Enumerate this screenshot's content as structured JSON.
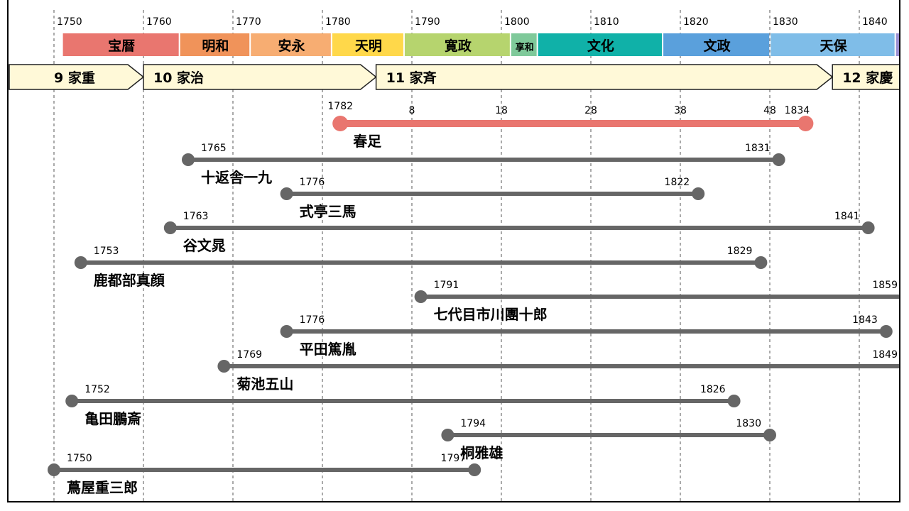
{
  "timeline": {
    "year_ticks": [
      "1750",
      "1760",
      "1770",
      "1780",
      "1790",
      "1800",
      "1810",
      "1820",
      "1830",
      "1840"
    ],
    "eras": [
      {
        "name": "宝暦",
        "start": 1751.0,
        "end": 1764.1,
        "color": "#e9766f"
      },
      {
        "name": "明和",
        "start": 1764.1,
        "end": 1772.0,
        "color": "#f0935a"
      },
      {
        "name": "安永",
        "start": 1772.0,
        "end": 1781.1,
        "color": "#f7ad72"
      },
      {
        "name": "天明",
        "start": 1781.1,
        "end": 1789.2,
        "color": "#ffd84a"
      },
      {
        "name": "寛政",
        "start": 1789.2,
        "end": 1801.1,
        "color": "#b6d46e"
      },
      {
        "name": "享和",
        "start": 1801.1,
        "end": 1804.1,
        "color": "#7fc99a"
      },
      {
        "name": "文化",
        "start": 1804.1,
        "end": 1818.1,
        "color": "#10b1a8"
      },
      {
        "name": "文政",
        "start": 1818.1,
        "end": 1830.1,
        "color": "#5aa0dc"
      },
      {
        "name": "天保",
        "start": 1830.1,
        "end": 1844.1,
        "color": "#7fbde8"
      },
      {
        "name": "",
        "start": 1844.1,
        "end": 1848.0,
        "color": "#9a8fd0"
      }
    ],
    "shoguns": [
      {
        "label": "9 家重",
        "start": 1745.0,
        "end": 1760.0
      },
      {
        "label": "10 家治",
        "start": 1760.0,
        "end": 1786.0
      },
      {
        "label": "11 家斉",
        "start": 1786.0,
        "end": 1837.0
      },
      {
        "label": "12 家慶",
        "start": 1837.0,
        "end": 1853.0
      }
    ]
  },
  "chart_data": {
    "type": "timeline",
    "people": [
      {
        "name": "春足",
        "start": 1782,
        "end": 1834,
        "color": "#e9766f",
        "start_label": "1782",
        "end_label": "1834",
        "age_marks": [
          {
            "year": 1790,
            "label": "8"
          },
          {
            "year": 1800,
            "label": "18"
          },
          {
            "year": 1810,
            "label": "28"
          },
          {
            "year": 1820,
            "label": "38"
          },
          {
            "year": 1830,
            "label": "48"
          }
        ]
      },
      {
        "name": "十返舎一九",
        "start": 1765,
        "end": 1831,
        "color": "#666666",
        "start_label": "1765",
        "end_label": "1831"
      },
      {
        "name": "式亭三馬",
        "start": 1776,
        "end": 1822,
        "color": "#666666",
        "start_label": "1776",
        "end_label": "1822"
      },
      {
        "name": "谷文晁",
        "start": 1763,
        "end": 1841,
        "color": "#666666",
        "start_label": "1763",
        "end_label": "1841"
      },
      {
        "name": "鹿都部真顔",
        "start": 1753,
        "end": 1829,
        "color": "#666666",
        "start_label": "1753",
        "end_label": "1829"
      },
      {
        "name": "七代目市川團十郎",
        "start": 1791,
        "end": 1859,
        "color": "#666666",
        "start_label": "1791",
        "end_label": "1859"
      },
      {
        "name": "平田篤胤",
        "start": 1776,
        "end": 1843,
        "color": "#666666",
        "start_label": "1776",
        "end_label": "1843"
      },
      {
        "name": "菊池五山",
        "start": 1769,
        "end": 1849,
        "color": "#666666",
        "start_label": "1769",
        "end_label": "1849"
      },
      {
        "name": "亀田鵬斎",
        "start": 1752,
        "end": 1826,
        "color": "#666666",
        "start_label": "1752",
        "end_label": "1826"
      },
      {
        "name": "桐雅雄",
        "start": 1794,
        "end": 1830,
        "color": "#666666",
        "start_label": "1794",
        "end_label": "1830"
      },
      {
        "name": "蔦屋重三郎",
        "start": 1750,
        "end": 1797,
        "color": "#666666",
        "start_label": "1750",
        "end_label": "1797"
      }
    ]
  }
}
